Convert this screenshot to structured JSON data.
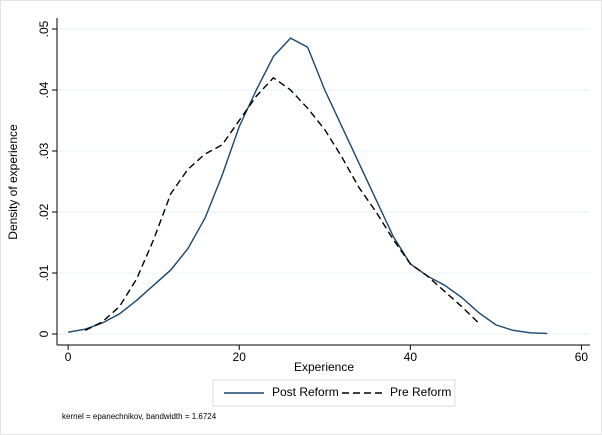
{
  "chart_data": {
    "type": "line",
    "x_label": "Experience",
    "y_label": "Density of experience",
    "note": "kernel = epanechnikov, bandwidth = 1.6724",
    "x": [
      0,
      2,
      4,
      6,
      8,
      10,
      12,
      14,
      16,
      18,
      20,
      22,
      24,
      26,
      28,
      30,
      32,
      34,
      36,
      38,
      40,
      42,
      44,
      46,
      48,
      50,
      52,
      54,
      56
    ],
    "series": [
      {
        "name": "Post Reform",
        "color": "#1a476f",
        "dash": "solid",
        "values": [
          0.0003,
          0.0008,
          0.0018,
          0.0033,
          0.0055,
          0.008,
          0.0105,
          0.014,
          0.019,
          0.026,
          0.034,
          0.04,
          0.0455,
          0.0485,
          0.047,
          0.04,
          0.034,
          0.028,
          0.022,
          0.016,
          0.0115,
          0.0095,
          0.008,
          0.006,
          0.0035,
          0.0015,
          0.0006,
          0.0002,
          0.0001
        ]
      },
      {
        "name": "Pre Reform",
        "color": "#000000",
        "dash": "dashed",
        "values": [
          null,
          0.0006,
          0.002,
          0.0045,
          0.009,
          0.0155,
          0.023,
          0.027,
          0.0295,
          0.031,
          0.035,
          0.039,
          0.042,
          0.04,
          0.037,
          0.0335,
          0.029,
          0.024,
          0.02,
          0.0155,
          0.0115,
          0.0095,
          0.007,
          0.0045,
          0.0018,
          null,
          null,
          null,
          null
        ]
      }
    ],
    "xlim": [
      -1.3,
      61
    ],
    "ylim": [
      -0.0018,
      0.0518
    ],
    "xticks": [
      0,
      20,
      40,
      60
    ],
    "yticks": [
      0,
      {
        "value": 0.01,
        "label": ".01"
      },
      {
        "value": 0.02,
        "label": ".02"
      },
      {
        "value": 0.03,
        "label": ".03"
      },
      {
        "value": 0.04,
        "label": ".04"
      },
      {
        "value": 0.05,
        "label": ".05"
      }
    ],
    "grid": true,
    "legend": "bottom"
  }
}
